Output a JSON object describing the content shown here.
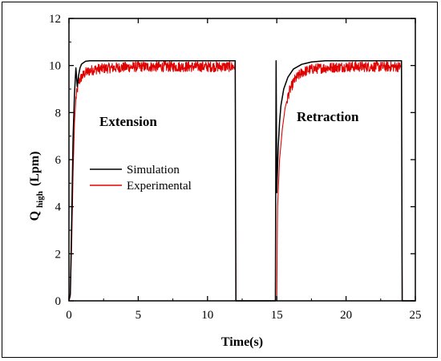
{
  "chart_data": {
    "type": "line",
    "xlabel": "Time(s)",
    "ylabel_main": "Q",
    "ylabel_sub": "high",
    "ylabel_unit": "(Lpm)",
    "xlim": [
      0,
      25
    ],
    "ylim": [
      0,
      12
    ],
    "x_ticks": [
      0,
      5,
      10,
      15,
      20,
      25
    ],
    "y_ticks": [
      0,
      2,
      4,
      6,
      8,
      10,
      12
    ],
    "annotations": [
      "Extension",
      "Retraction"
    ],
    "legend_position": "center-left",
    "series": [
      {
        "name": "Simulation",
        "color": "#000000",
        "x": [
          0,
          0.1,
          0.2,
          0.3,
          0.4,
          0.5,
          0.6,
          0.7,
          0.8,
          0.9,
          1.0,
          1.2,
          1.5,
          2.0,
          3.0,
          6.0,
          9.0,
          12.0,
          12.05,
          12.1,
          14.9,
          14.95,
          15.0,
          15.1,
          15.2,
          15.3,
          15.5,
          15.8,
          16.2,
          16.8,
          17.5,
          18.5,
          20.0,
          22.0,
          24.0,
          24.05,
          24.1,
          25.0
        ],
        "values": [
          0,
          0.3,
          3.5,
          7.0,
          8.8,
          9.9,
          9.1,
          9.6,
          9.9,
          10.05,
          10.1,
          10.18,
          10.2,
          10.2,
          10.2,
          10.2,
          10.2,
          10.2,
          0,
          0,
          0,
          10.2,
          4.6,
          6.5,
          7.6,
          8.3,
          9.0,
          9.5,
          9.85,
          10.05,
          10.15,
          10.2,
          10.2,
          10.2,
          10.2,
          0,
          0,
          0
        ]
      },
      {
        "name": "Experimental",
        "color": "#e00000",
        "noise_amplitude": 0.22,
        "x": [
          0,
          0.1,
          0.2,
          0.3,
          0.4,
          0.5,
          0.7,
          0.9,
          1.2,
          1.6,
          2.0,
          3.0,
          5.0,
          8.0,
          11.0,
          12.0,
          12.05,
          12.1,
          14.9,
          15.0,
          15.05,
          15.2,
          15.4,
          15.6,
          15.9,
          16.3,
          16.8,
          17.5,
          18.5,
          20.0,
          22.0,
          24.0,
          24.05,
          24.1,
          25.0
        ],
        "values": [
          0,
          0.2,
          2.5,
          5.5,
          7.6,
          8.6,
          9.3,
          9.5,
          9.7,
          9.8,
          9.85,
          9.9,
          9.95,
          9.95,
          9.95,
          9.95,
          0,
          0,
          0,
          0,
          3.9,
          6.0,
          7.3,
          8.2,
          8.9,
          9.4,
          9.7,
          9.85,
          9.9,
          9.95,
          9.95,
          9.95,
          0,
          0,
          0
        ]
      }
    ]
  }
}
